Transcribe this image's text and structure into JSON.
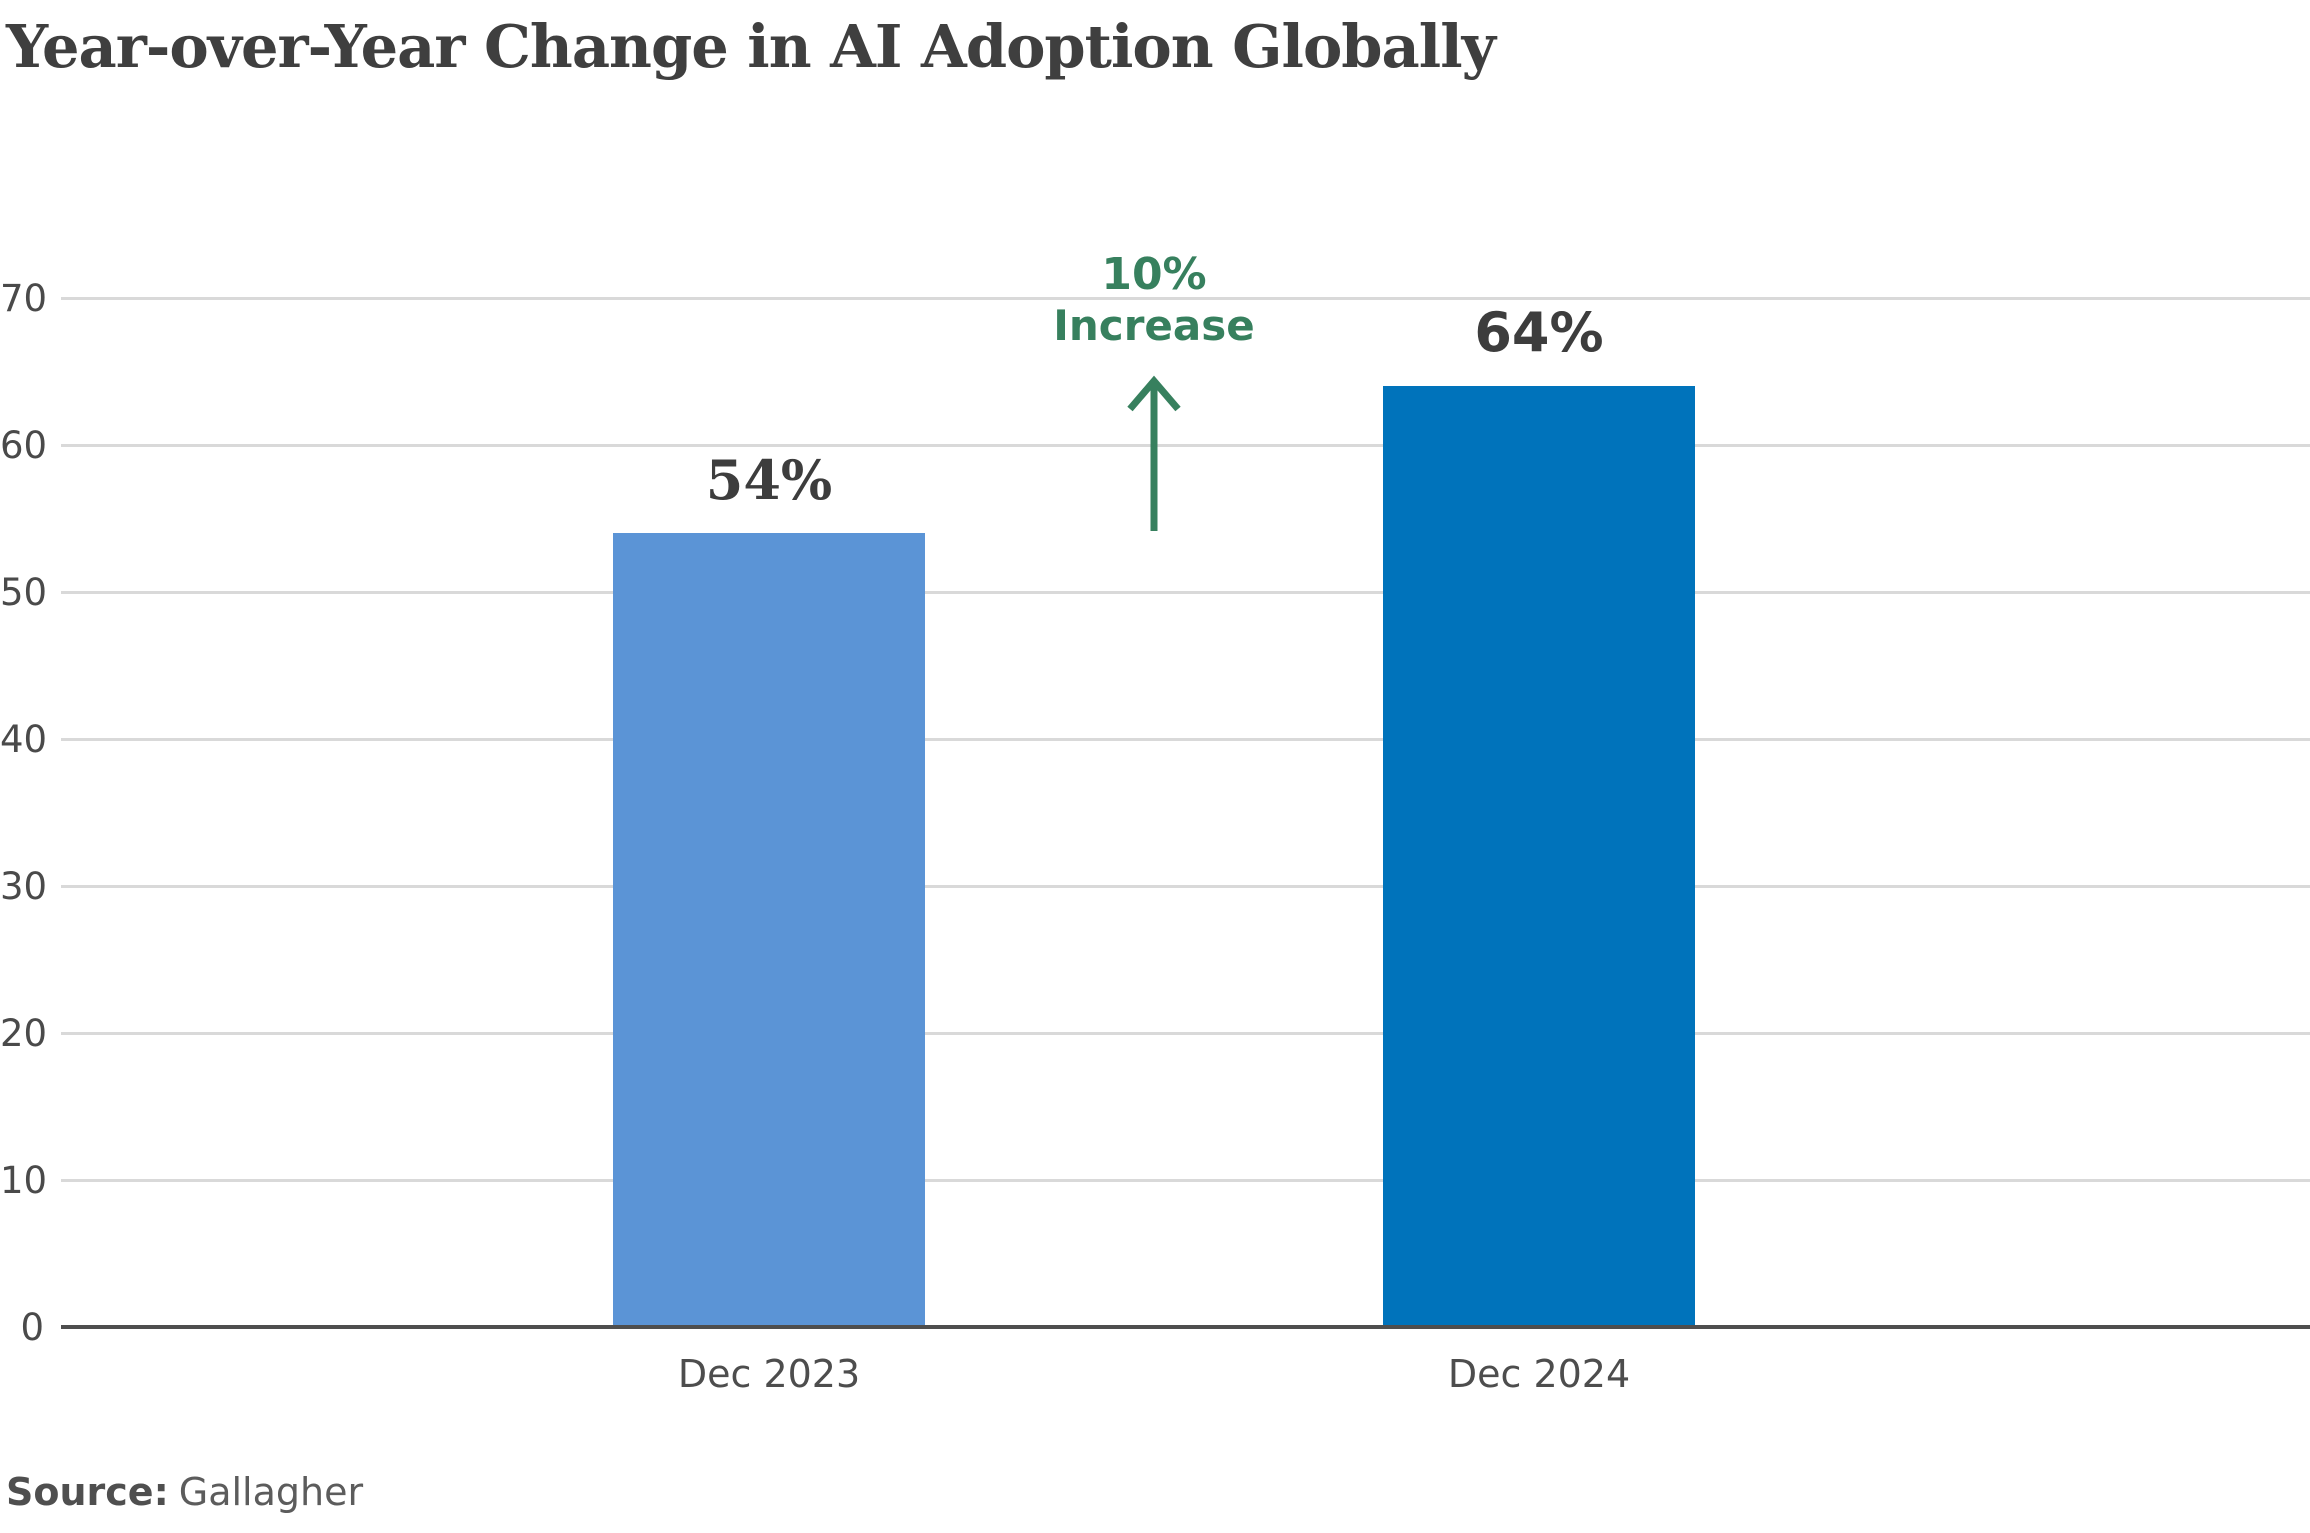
{
  "title": "Year-over-Year Change in AI Adoption Globally",
  "source": {
    "label": "Source:",
    "name": "Gallagher"
  },
  "annotation": {
    "line1": "10%",
    "line2": "Increase",
    "color": "#37805e",
    "icon": "up-arrow"
  },
  "colors": {
    "bar_2023": "#5b94d6",
    "bar_2024": "#0073bb",
    "grid": "#d9d9d9",
    "axis": "#4e4e4e",
    "text_dark": "#3d3d3d"
  },
  "chart_data": {
    "type": "bar",
    "categories": [
      "Dec 2023",
      "Dec 2024"
    ],
    "values": [
      54,
      64
    ],
    "bar_labels": [
      "54%",
      "64%"
    ],
    "bar_colors": [
      "#5b94d6",
      "#0073bb"
    ],
    "title": "Year-over-Year Change in AI Adoption Globally",
    "xlabel": "",
    "ylabel": "",
    "ylim": [
      0,
      70
    ],
    "yticks": [
      0,
      10,
      20,
      30,
      40,
      50,
      60,
      70
    ],
    "grid": true,
    "legend": false,
    "annotations": [
      {
        "text": "10% Increase",
        "between": [
          "Dec 2023",
          "Dec 2024"
        ],
        "style": "green-up-arrow"
      }
    ]
  }
}
